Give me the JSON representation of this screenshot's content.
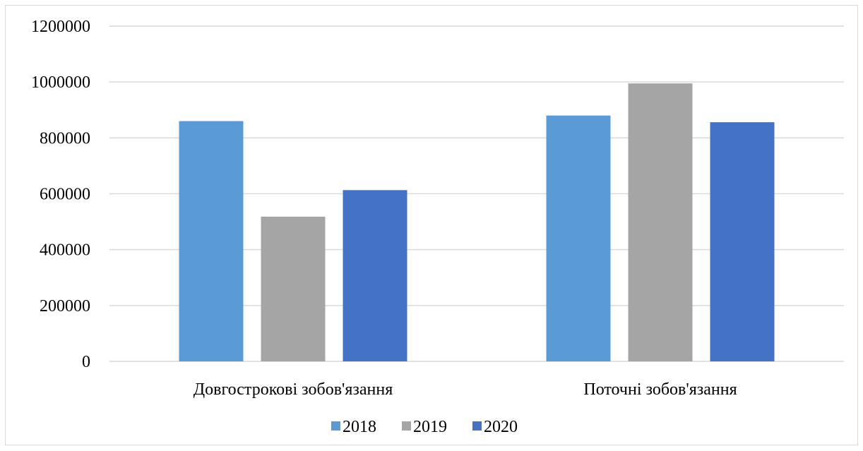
{
  "chart_data": {
    "type": "bar",
    "categories": [
      "Довгострокові зобов'язання",
      "Поточні зобов'язання"
    ],
    "series": [
      {
        "name": "2018",
        "color": "#5b9bd5",
        "values": [
          860000,
          880000
        ]
      },
      {
        "name": "2019",
        "color": "#a5a5a5",
        "values": [
          518000,
          995000
        ]
      },
      {
        "name": "2020",
        "color": "#4472c4",
        "values": [
          613000,
          856000
        ]
      }
    ],
    "yticks": [
      "0",
      "200000",
      "400000",
      "600000",
      "800000",
      "1000000",
      "1200000"
    ],
    "ylim": [
      0,
      1200000
    ],
    "grid": true,
    "legend_position": "bottom",
    "gridline_color": "#d9d9d9"
  }
}
